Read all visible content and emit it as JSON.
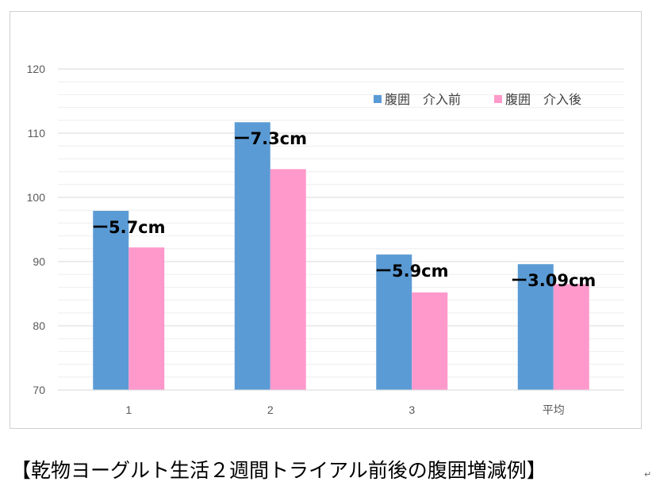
{
  "chart_data": {
    "type": "bar",
    "categories": [
      "1",
      "2",
      "3",
      "平均"
    ],
    "series": [
      {
        "name": "腹囲　介入前",
        "color": "#5b9bd5",
        "values": [
          97.9,
          111.7,
          91.1,
          89.6
        ]
      },
      {
        "name": "腹囲　介入後",
        "color": "#ff99cc",
        "values": [
          92.2,
          104.4,
          85.2,
          86.5
        ]
      }
    ],
    "annotations": [
      "ー5.7cm",
      "ー7.3cm",
      "ー5.9cm",
      "ー3.09cm"
    ],
    "ylim": [
      70,
      120
    ],
    "yticks": [
      70,
      80,
      90,
      100,
      110,
      120
    ],
    "minor_grid_step": 2,
    "grid": true,
    "legend_position": "top-right",
    "title": "",
    "xlabel": "",
    "ylabel": ""
  },
  "caption": "【乾物ヨーグルト生活２週間トライアル前後の腹囲増減例】",
  "paragraph_mark": "↵"
}
